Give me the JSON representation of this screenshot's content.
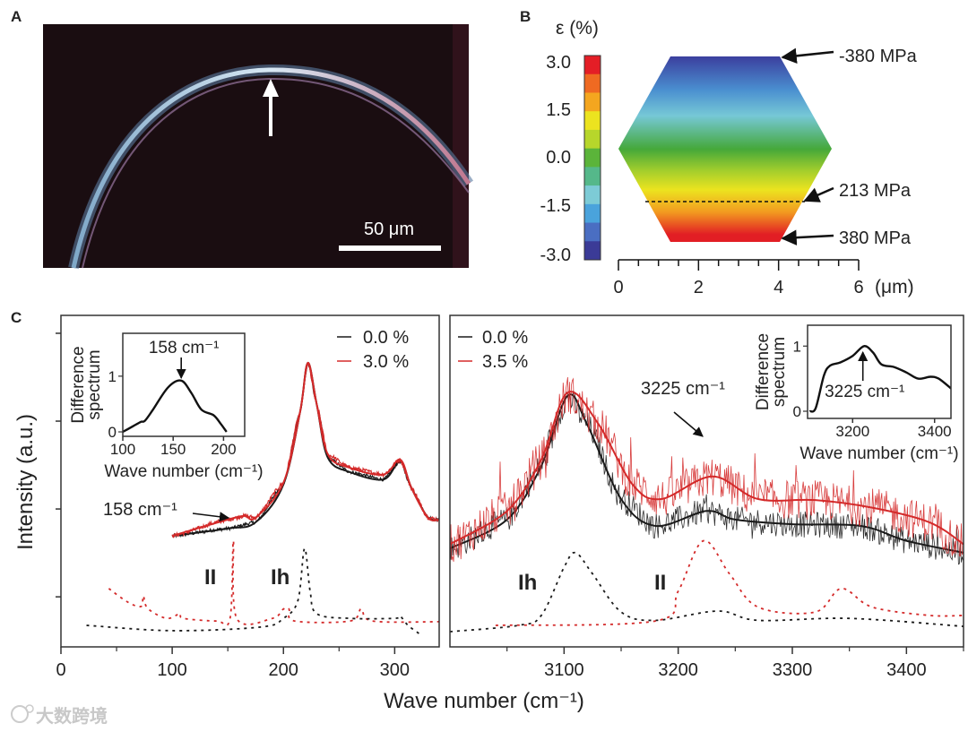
{
  "panel_labels": {
    "a": "A",
    "b": "B",
    "c": "C"
  },
  "panel_a": {
    "scale_bar_label": "50 μm",
    "background": "#1a0d11"
  },
  "panel_b": {
    "colorbar_title": "ε (%)",
    "colorbar_ticks": [
      "3.0",
      "1.5",
      "0.0",
      "-1.5",
      "-3.0"
    ],
    "colorbar_colors": [
      "#e41e26",
      "#ef6a22",
      "#f4a61f",
      "#ece31f",
      "#b7d62b",
      "#5bb43a",
      "#55b88a",
      "#7dcbd6",
      "#4aa3dc",
      "#4a6ec2",
      "#3b3b97"
    ],
    "x_ticks": [
      "0",
      "2",
      "4",
      "6"
    ],
    "x_unit": "(μm)",
    "stress_labels": {
      "top": "-380 MPa",
      "dashed": "213 MPa",
      "bottom": "380 MPa"
    }
  },
  "watermark": "大数跨境",
  "chart_data": [
    {
      "id": "raman-low",
      "type": "line",
      "xlabel": "Wave number (cm⁻¹)",
      "ylabel": "Intensity (a.u.)",
      "xlim": [
        0,
        340
      ],
      "ylim": [
        0,
        100
      ],
      "x_ticks": [
        0,
        100,
        200,
        300
      ],
      "x_minor_ticks": [
        50,
        150,
        250
      ],
      "y_ticks_unlabeled": [
        15.1,
        41.6,
        68.1,
        94.6
      ],
      "series": [
        {
          "name": "0.0 %",
          "color": "#1a1a1a",
          "style": "solid",
          "noise": 0.5,
          "x": [
            100,
            150,
            175,
            200,
            215,
            222,
            230,
            240,
            260,
            290,
            305,
            315,
            330,
            340
          ],
          "y": [
            33.5,
            35.7,
            37.6,
            49,
            71,
            85.7,
            73,
            57,
            52.7,
            50.5,
            56,
            48,
            39,
            38.4
          ]
        },
        {
          "name": "3.0 %",
          "color": "#d42a2a",
          "style": "solid",
          "noise": 0.6,
          "x": [
            100,
            150,
            165,
            175,
            200,
            215,
            222,
            230,
            240,
            260,
            290,
            305,
            315,
            330,
            340
          ],
          "y": [
            33.5,
            38.4,
            39.5,
            39,
            49.5,
            71,
            85.7,
            73,
            58,
            54,
            52,
            56.5,
            48,
            39,
            38.4
          ]
        },
        {
          "name": "II reference",
          "color": "#d42a2a",
          "style": "dashed",
          "x": [
            43,
            60,
            72,
            74,
            78,
            95,
            107,
            110,
            140,
            152,
            155,
            158,
            190,
            200,
            205,
            210,
            260,
            270,
            280,
            340
          ],
          "y": [
            17.6,
            13.5,
            12.2,
            15.4,
            11.6,
            8.6,
            10,
            8.6,
            7.8,
            8.6,
            32,
            8.6,
            8.6,
            11.4,
            11.4,
            7.8,
            7.8,
            11.4,
            7.8,
            7.6
          ]
        },
        {
          "name": "Ih reference",
          "color": "#1a1a1a",
          "style": "dashed",
          "x": [
            23,
            100,
            180,
            200,
            213,
            219,
            224,
            230,
            260,
            300,
            305,
            312,
            322
          ],
          "y": [
            6.5,
            4.9,
            6,
            8.6,
            14,
            29.7,
            16.8,
            10,
            8.6,
            8.6,
            9.2,
            6.5,
            4
          ]
        }
      ],
      "legend": [
        "0.0 %",
        "3.0 %"
      ],
      "legend_position": "top-right",
      "annotations": [
        {
          "text": "158 cm⁻¹",
          "x": 158
        },
        {
          "text": "II",
          "x": 140
        },
        {
          "text": "Ih",
          "x": 193
        }
      ]
    },
    {
      "id": "raman-high",
      "type": "line",
      "xlim": [
        3000,
        3450
      ],
      "ylim": [
        0,
        100
      ],
      "x_ticks": [
        3100,
        3200,
        3300,
        3400
      ],
      "x_minor_ticks": [
        3050,
        3150,
        3250,
        3350,
        3450
      ],
      "series": [
        {
          "name": "0.0 %",
          "color": "#1a1a1a",
          "style": "solid",
          "noise": 4,
          "x": [
            3000,
            3050,
            3080,
            3103,
            3120,
            3150,
            3180,
            3225,
            3250,
            3300,
            3360,
            3400,
            3450
          ],
          "y": [
            29.7,
            38.4,
            54.6,
            75.7,
            67.3,
            44.6,
            36.5,
            41,
            38.4,
            37,
            36.5,
            32,
            28.4
          ]
        },
        {
          "name": "3.5 %",
          "color": "#d42a2a",
          "style": "solid",
          "noise": 6,
          "x": [
            3000,
            3050,
            3080,
            3103,
            3130,
            3160,
            3185,
            3230,
            3270,
            3320,
            3370,
            3420,
            3450
          ],
          "y": [
            31,
            41,
            56.5,
            76.7,
            67.3,
            49,
            44.6,
            51.4,
            44.6,
            44.3,
            42,
            37.6,
            31
          ]
        },
        {
          "name": "Ih reference",
          "color": "#1a1a1a",
          "style": "dashed",
          "x": [
            3000,
            3060,
            3080,
            3100,
            3110,
            3125,
            3150,
            3180,
            3235,
            3270,
            3350,
            3450
          ],
          "y": [
            4.6,
            6.5,
            9.5,
            24,
            28.4,
            22,
            10.5,
            8,
            10.8,
            8,
            8.6,
            6.2
          ]
        },
        {
          "name": "II reference",
          "color": "#d42a2a",
          "style": "dashed",
          "x": [
            3040,
            3180,
            3200,
            3222,
            3245,
            3270,
            3320,
            3343,
            3370,
            3420,
            3450
          ],
          "y": [
            6.5,
            7.8,
            16.8,
            32,
            22,
            12,
            10.5,
            17.6,
            12,
            9.5,
            9.5
          ]
        }
      ],
      "legend": [
        "0.0 %",
        "3.5 %"
      ],
      "legend_position": "top-left",
      "annotations": [
        {
          "text": "3225 cm⁻¹",
          "x": 3225
        },
        {
          "text": "Ih",
          "x": 3070
        },
        {
          "text": "II",
          "x": 3185
        }
      ]
    },
    {
      "id": "inset-low",
      "type": "line",
      "xlabel": "Wave number (cm⁻¹)",
      "ylabel": [
        "Difference",
        "spectrum"
      ],
      "xlim": [
        100,
        221
      ],
      "ylim": [
        -0.08,
        1.77
      ],
      "x_ticks": [
        100,
        150,
        200
      ],
      "y_ticks": [
        0,
        1
      ],
      "series": [
        {
          "name": "difference",
          "color": "#111111",
          "x": [
            100,
            110,
            118,
            122,
            130,
            145,
            158,
            168,
            178,
            190,
            197,
            203
          ],
          "y": [
            0,
            0.1,
            0.18,
            0.2,
            0.4,
            0.8,
            0.92,
            0.7,
            0.4,
            0.3,
            0.15,
            0
          ]
        }
      ],
      "annotations": [
        {
          "text": "158 cm⁻¹",
          "x": 158
        }
      ]
    },
    {
      "id": "inset-high",
      "type": "line",
      "xlabel": "Wave number (cm⁻¹)",
      "ylabel": [
        "Difference",
        "spectrum"
      ],
      "xlim": [
        3090,
        3440
      ],
      "ylim": [
        -0.11,
        1.32
      ],
      "x_ticks": [
        3200,
        3400
      ],
      "y_ticks": [
        0,
        1
      ],
      "series": [
        {
          "name": "difference",
          "color": "#111111",
          "x": [
            3095,
            3110,
            3130,
            3145,
            3170,
            3200,
            3228,
            3250,
            3270,
            3300,
            3330,
            3360,
            3390,
            3410,
            3440
          ],
          "y": [
            0,
            0.05,
            0.55,
            0.7,
            0.75,
            0.85,
            1.0,
            0.9,
            0.72,
            0.68,
            0.6,
            0.5,
            0.53,
            0.5,
            0.35
          ]
        }
      ],
      "annotations": [
        {
          "text": "3225 cm⁻¹",
          "x": 3225
        }
      ]
    }
  ]
}
